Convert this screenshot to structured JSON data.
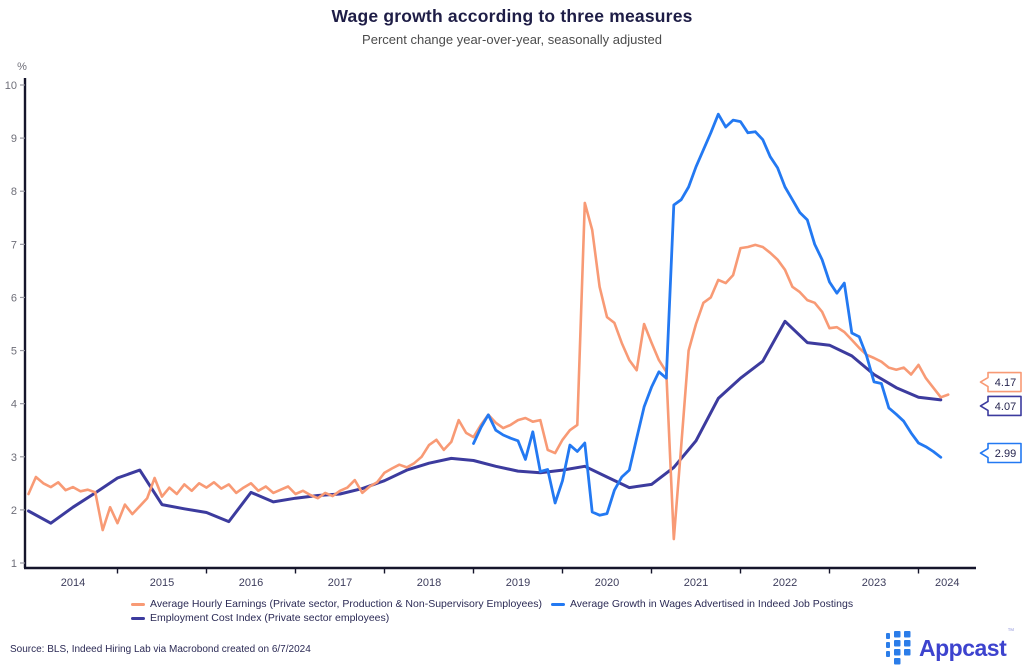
{
  "header": {
    "title": "Wage growth according to three measures",
    "subtitle": "Percent change year-over-year, seasonally adjusted"
  },
  "chart_data": {
    "type": "line",
    "title": "Wage growth according to three measures",
    "subtitle": "Percent change year-over-year, seasonally adjusted",
    "unit": "%",
    "grid": false,
    "legend_position": "bottom",
    "y_axis": {
      "min": 1,
      "max": 10,
      "ticks": [
        1,
        2,
        3,
        4,
        5,
        6,
        7,
        8,
        9,
        10
      ]
    },
    "x_axis": {
      "start_year": 2014,
      "end_year": 2024,
      "labels": [
        "2014",
        "2015",
        "2016",
        "2017",
        "2018",
        "2019",
        "2020",
        "2021",
        "2022",
        "2023",
        "2024"
      ]
    },
    "series": [
      {
        "name": "Average Hourly Earnings (Private sector, Production & Non-Supervisory Employees)",
        "color": "#F89A75",
        "start": 2014.0,
        "step_months": 1,
        "end_label": "4.17",
        "values": [
          2.3,
          2.62,
          2.5,
          2.43,
          2.52,
          2.37,
          2.43,
          2.35,
          2.38,
          2.33,
          1.62,
          2.05,
          1.75,
          2.1,
          1.92,
          2.07,
          2.22,
          2.6,
          2.25,
          2.42,
          2.3,
          2.48,
          2.36,
          2.5,
          2.42,
          2.52,
          2.4,
          2.48,
          2.32,
          2.42,
          2.5,
          2.36,
          2.44,
          2.32,
          2.38,
          2.44,
          2.3,
          2.36,
          2.28,
          2.22,
          2.32,
          2.26,
          2.36,
          2.42,
          2.56,
          2.32,
          2.44,
          2.52,
          2.7,
          2.78,
          2.85,
          2.8,
          2.88,
          3.0,
          3.22,
          3.32,
          3.13,
          3.28,
          3.69,
          3.45,
          3.37,
          3.6,
          3.79,
          3.64,
          3.54,
          3.6,
          3.69,
          3.73,
          3.66,
          3.69,
          3.13,
          3.07,
          3.32,
          3.5,
          3.6,
          7.78,
          7.27,
          6.2,
          5.63,
          5.52,
          5.14,
          4.82,
          4.63,
          5.5,
          5.15,
          4.82,
          4.6,
          1.45,
          3.2,
          5.0,
          5.5,
          5.9,
          6.0,
          6.33,
          6.27,
          6.42,
          6.93,
          6.95,
          6.99,
          6.95,
          6.84,
          6.71,
          6.52,
          6.2,
          6.1,
          5.95,
          5.9,
          5.73,
          5.42,
          5.44,
          5.35,
          5.2,
          5.05,
          4.92,
          4.86,
          4.79,
          4.68,
          4.64,
          4.68,
          4.55,
          4.73,
          4.48,
          4.3,
          4.12,
          4.17
        ]
      },
      {
        "name": "Average Growth in Wages Advertised in Indeed Job Postings",
        "color": "#2379F2",
        "start": 2019.0,
        "step_months": 1,
        "end_label": "2.99",
        "values": [
          3.25,
          3.55,
          3.79,
          3.5,
          3.41,
          3.35,
          3.3,
          2.95,
          3.47,
          2.72,
          2.76,
          2.13,
          2.55,
          3.22,
          3.1,
          3.26,
          1.96,
          1.9,
          1.93,
          2.37,
          2.62,
          2.75,
          3.35,
          3.94,
          4.31,
          4.6,
          4.48,
          7.74,
          7.84,
          8.08,
          8.46,
          8.78,
          9.1,
          9.45,
          9.21,
          9.34,
          9.31,
          9.1,
          9.12,
          8.97,
          8.65,
          8.44,
          8.08,
          7.84,
          7.6,
          7.46,
          7.0,
          6.71,
          6.29,
          6.08,
          6.27,
          5.33,
          5.26,
          4.9,
          4.41,
          4.38,
          3.92,
          3.8,
          3.67,
          3.45,
          3.26,
          3.19,
          3.1,
          2.99
        ]
      },
      {
        "name": "Employment Cost Index (Private sector employees)",
        "color": "#3C3B9E",
        "start": 2014.0,
        "step_months": 3,
        "end_label": "4.07",
        "values": [
          1.98,
          1.75,
          2.05,
          2.32,
          2.6,
          2.75,
          2.1,
          2.02,
          1.95,
          1.78,
          2.33,
          2.15,
          2.22,
          2.27,
          2.3,
          2.4,
          2.55,
          2.75,
          2.88,
          2.97,
          2.93,
          2.82,
          2.73,
          2.7,
          2.75,
          2.82,
          2.62,
          2.42,
          2.48,
          2.8,
          3.3,
          4.1,
          4.48,
          4.8,
          5.55,
          5.15,
          5.1,
          4.9,
          4.55,
          4.3,
          4.12,
          4.07
        ]
      }
    ]
  },
  "footer": {
    "source": "Source: BLS, Indeed Hiring Lab via Macrobond created on 6/7/2024"
  },
  "logo": {
    "text": "Appcast",
    "tm": "™",
    "icon_color": "#2B7DE9",
    "text_color": "#3D43CE"
  }
}
